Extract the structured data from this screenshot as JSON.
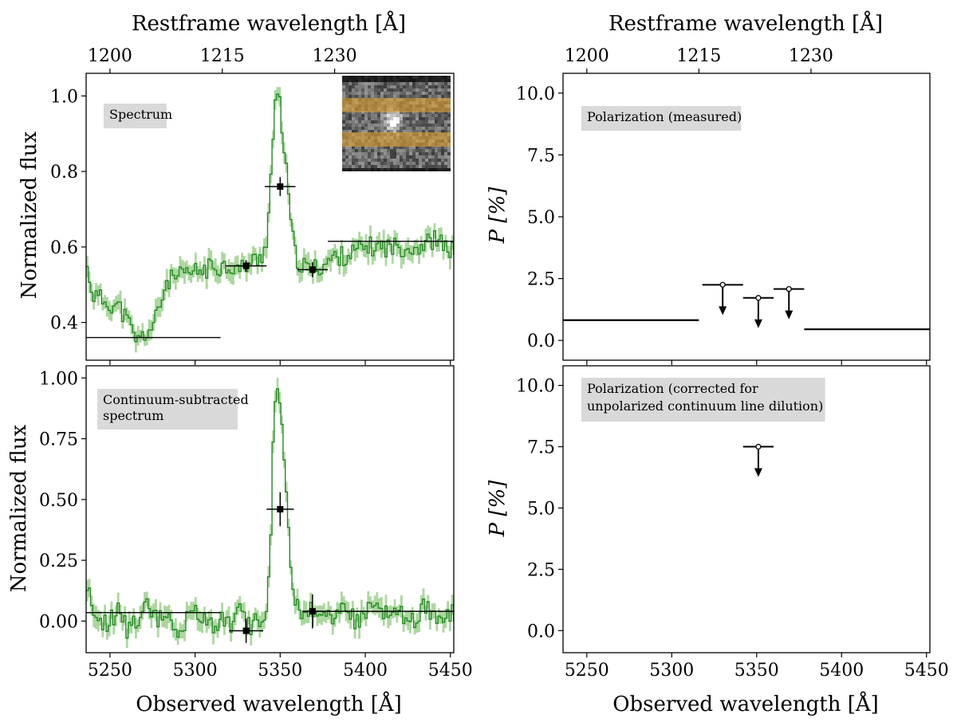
{
  "chart_data": [
    {
      "type": "line",
      "panel": "top-left",
      "box_label": "Spectrum",
      "ylabel": "Normalized flux",
      "xlabel": "",
      "top_xlabel": "Restframe wavelength [Å]",
      "xlim": [
        5236,
        5452
      ],
      "ylim": [
        0.3,
        1.06
      ],
      "yticks": [
        "0.4",
        "0.6",
        "0.8",
        "1.0"
      ],
      "ytick_values": [
        0.4,
        0.6,
        0.8,
        1.0
      ],
      "top_ticks": [
        "1200",
        "1215",
        "1230"
      ],
      "top_tick_positions": [
        5250,
        5316,
        5382
      ],
      "bottom_ticks": [
        5250,
        5300,
        5350,
        5400,
        5450
      ],
      "series_color": "#228b22",
      "band_color": "#9dd08e",
      "spectrum": [
        [
          5236,
          0.54
        ],
        [
          5240,
          0.47
        ],
        [
          5245,
          0.46
        ],
        [
          5250,
          0.45
        ],
        [
          5255,
          0.44
        ],
        [
          5260,
          0.4
        ],
        [
          5263,
          0.37
        ],
        [
          5266,
          0.35
        ],
        [
          5270,
          0.37
        ],
        [
          5275,
          0.39
        ],
        [
          5279,
          0.45
        ],
        [
          5283,
          0.51
        ],
        [
          5290,
          0.52
        ],
        [
          5297,
          0.53
        ],
        [
          5305,
          0.54
        ],
        [
          5312,
          0.55
        ],
        [
          5320,
          0.55
        ],
        [
          5326,
          0.54
        ],
        [
          5332,
          0.56
        ],
        [
          5338,
          0.57
        ],
        [
          5342,
          0.63
        ],
        [
          5344,
          0.8
        ],
        [
          5346,
          0.95
        ],
        [
          5347.5,
          1.0
        ],
        [
          5349,
          0.98
        ],
        [
          5352,
          0.85
        ],
        [
          5355,
          0.69
        ],
        [
          5358,
          0.58
        ],
        [
          5362,
          0.55
        ],
        [
          5368,
          0.54
        ],
        [
          5374,
          0.55
        ],
        [
          5380,
          0.57
        ],
        [
          5390,
          0.58
        ],
        [
          5400,
          0.6
        ],
        [
          5410,
          0.6
        ],
        [
          5420,
          0.6
        ],
        [
          5430,
          0.6
        ],
        [
          5440,
          0.62
        ],
        [
          5446,
          0.6
        ],
        [
          5452,
          0.59
        ]
      ],
      "horizontal_lines": [
        {
          "x0": 5236,
          "x1": 5315,
          "y": 0.36
        },
        {
          "x0": 5378,
          "x1": 5452,
          "y": 0.615
        }
      ],
      "binned_points": [
        {
          "x": 5330,
          "y": 0.55,
          "xerr": 12,
          "yerr": 0.015
        },
        {
          "x": 5350,
          "y": 0.76,
          "xerr": 9,
          "yerr": 0.025
        },
        {
          "x": 5369,
          "y": 0.54,
          "xerr": 9,
          "yerr": 0.02
        }
      ],
      "inset": {
        "type": "2d-spectrum-cutout",
        "highlight_color": "#e0a030"
      }
    },
    {
      "type": "line",
      "panel": "bottom-left",
      "box_label": "Continuum-subtracted spectrum",
      "box_label_lines": [
        "Continuum-subtracted",
        "spectrum"
      ],
      "ylabel": "Normalized flux",
      "xlabel": "Observed wavelength [Å]",
      "xlim": [
        5236,
        5452
      ],
      "ylim": [
        -0.13,
        1.05
      ],
      "yticks": [
        "0.00",
        "0.25",
        "0.50",
        "0.75",
        "1.00"
      ],
      "ytick_values": [
        0.0,
        0.25,
        0.5,
        0.75,
        1.0
      ],
      "bottom_ticks": [
        5250,
        5300,
        5350,
        5400,
        5450
      ],
      "series_color": "#228b22",
      "band_color": "#9dd08e",
      "spectrum": [
        [
          5236,
          0.14
        ],
        [
          5242,
          0.0
        ],
        [
          5248,
          -0.02
        ],
        [
          5254,
          0.05
        ],
        [
          5260,
          -0.04
        ],
        [
          5266,
          0.02
        ],
        [
          5272,
          0.08
        ],
        [
          5278,
          0.0
        ],
        [
          5284,
          0.03
        ],
        [
          5290,
          -0.05
        ],
        [
          5296,
          0.02
        ],
        [
          5302,
          0.04
        ],
        [
          5308,
          -0.03
        ],
        [
          5314,
          0.01
        ],
        [
          5320,
          -0.02
        ],
        [
          5326,
          0.05
        ],
        [
          5332,
          -0.03
        ],
        [
          5338,
          0.02
        ],
        [
          5342,
          0.06
        ],
        [
          5344,
          0.4
        ],
        [
          5346,
          0.9
        ],
        [
          5347.5,
          1.0
        ],
        [
          5349,
          0.93
        ],
        [
          5352,
          0.65
        ],
        [
          5355,
          0.3
        ],
        [
          5358,
          0.09
        ],
        [
          5364,
          0.03
        ],
        [
          5370,
          0.06
        ],
        [
          5378,
          0.01
        ],
        [
          5386,
          0.07
        ],
        [
          5394,
          0.0
        ],
        [
          5402,
          0.05
        ],
        [
          5410,
          0.02
        ],
        [
          5418,
          0.06
        ],
        [
          5426,
          -0.02
        ],
        [
          5434,
          0.07
        ],
        [
          5442,
          0.02
        ],
        [
          5446,
          0.0
        ],
        [
          5452,
          0.04
        ]
      ],
      "horizontal_lines": [
        {
          "x0": 5236,
          "x1": 5315,
          "y": 0.035
        },
        {
          "x0": 5363,
          "x1": 5452,
          "y": 0.04
        }
      ],
      "binned_points": [
        {
          "x": 5330,
          "y": -0.04,
          "xerr": 10,
          "yerr": 0.05
        },
        {
          "x": 5350,
          "y": 0.46,
          "xerr": 8,
          "yerr": 0.07
        },
        {
          "x": 5369,
          "y": 0.04,
          "xerr": 6,
          "yerr": 0.07
        }
      ]
    },
    {
      "type": "scatter",
      "panel": "top-right",
      "box_label": "Polarization (measured)",
      "ylabel": "P [%]",
      "xlabel": "",
      "top_xlabel": "Restframe wavelength [Å]",
      "xlim": [
        5236,
        5452
      ],
      "ylim": [
        -0.8,
        10.8
      ],
      "yticks": [
        "0.0",
        "2.5",
        "5.0",
        "7.5",
        "10.0"
      ],
      "ytick_values": [
        0.0,
        2.5,
        5.0,
        7.5,
        10.0
      ],
      "top_ticks": [
        "1200",
        "1215",
        "1230"
      ],
      "top_tick_positions": [
        5250,
        5316,
        5382
      ],
      "bottom_ticks": [
        5250,
        5300,
        5350,
        5400,
        5450
      ],
      "horizontal_lines": [
        {
          "x0": 5236,
          "x1": 5316,
          "y": 0.82
        },
        {
          "x0": 5378,
          "x1": 5452,
          "y": 0.45
        }
      ],
      "upper_limits": [
        {
          "x": 5330,
          "y": 2.25,
          "xerr": 12
        },
        {
          "x": 5351,
          "y": 1.72,
          "xerr": 9
        },
        {
          "x": 5369,
          "y": 2.08,
          "xerr": 9
        }
      ]
    },
    {
      "type": "scatter",
      "panel": "bottom-right",
      "box_label": "Polarization (corrected for unpolarized continuum line dilution)",
      "box_label_lines": [
        "Polarization (corrected for",
        "unpolarized continuum line dilution)"
      ],
      "ylabel": "P [%]",
      "xlabel": "Observed wavelength [Å]",
      "xlim": [
        5236,
        5452
      ],
      "ylim": [
        -0.9,
        10.8
      ],
      "yticks": [
        "0.0",
        "2.5",
        "5.0",
        "7.5",
        "10.0"
      ],
      "ytick_values": [
        0.0,
        2.5,
        5.0,
        7.5,
        10.0
      ],
      "bottom_ticks": [
        5250,
        5300,
        5350,
        5400,
        5450
      ],
      "upper_limits": [
        {
          "x": 5351,
          "y": 7.5,
          "xerr": 9
        }
      ]
    }
  ]
}
